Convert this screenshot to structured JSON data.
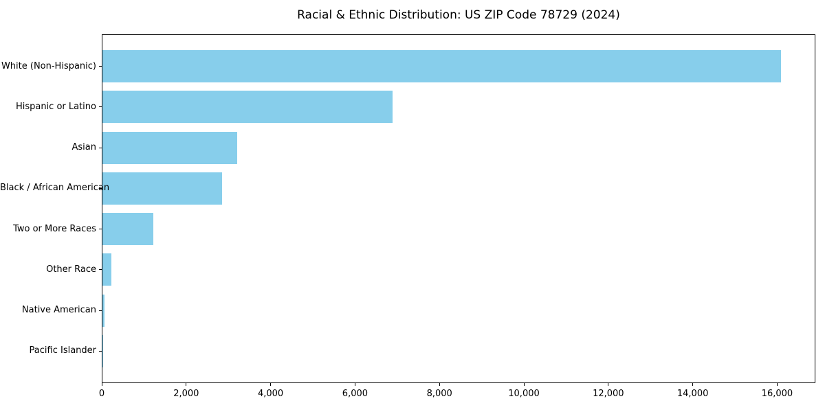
{
  "chart_data": {
    "type": "bar",
    "orientation": "horizontal",
    "title": "Racial & Ethnic Distribution: US ZIP Code 78729 (2024)",
    "categories": [
      "White (Non-Hispanic)",
      "Hispanic or Latino",
      "Asian",
      "Black / African American",
      "Two or More Races",
      "Other Race",
      "Native American",
      "Pacific Islander"
    ],
    "values": [
      16100,
      6890,
      3195,
      2835,
      1215,
      210,
      45,
      20
    ],
    "bar_color": "#87CEEB",
    "xlim": [
      0,
      16905
    ],
    "x_ticks": [
      0,
      2000,
      4000,
      6000,
      8000,
      10000,
      12000,
      14000,
      16000
    ],
    "x_tick_labels": [
      "0",
      "2,000",
      "4,000",
      "6,000",
      "8,000",
      "10,000",
      "12,000",
      "14,000",
      "16,000"
    ],
    "xlabel": "",
    "ylabel": "",
    "grid": false,
    "legend": null,
    "text_color": "#000000",
    "spine_color": "#000000",
    "background_color": "#ffffff"
  }
}
